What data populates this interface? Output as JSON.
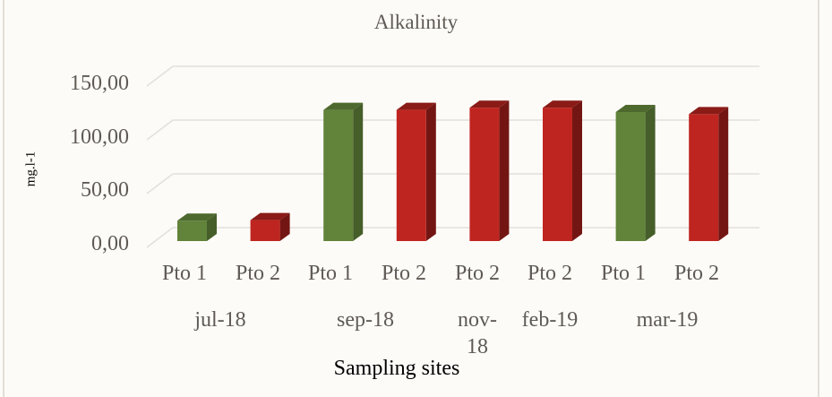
{
  "chart_data": {
    "type": "bar",
    "style": "3d-column",
    "title": "Alkalinity",
    "xlabel": "Sampling sites",
    "ylabel": "mg.l-1",
    "ylim": [
      0,
      150
    ],
    "yticks": [
      "0,00",
      "50,00",
      "100,00",
      "150,00"
    ],
    "grid": true,
    "legend": null,
    "categories": [
      "Pto 1",
      "Pto 2",
      "Pto 1",
      "Pto 2",
      "Pto 2",
      "Pto 2",
      "Pto 1",
      "Pto 2"
    ],
    "groups": [
      {
        "label": "jul-18",
        "span": [
          0,
          1
        ]
      },
      {
        "label": "sep-18",
        "span": [
          2,
          3
        ]
      },
      {
        "label": "nov-18",
        "span": [
          4,
          4
        ]
      },
      {
        "label": "feb-19",
        "span": [
          5,
          5
        ]
      },
      {
        "label": "mar-19",
        "span": [
          6,
          7
        ]
      }
    ],
    "values": [
      19,
      19.5,
      122,
      122,
      124,
      124,
      120,
      118
    ],
    "bar_colors": [
      "#61833a",
      "#bf2520",
      "#61833a",
      "#bf2520",
      "#bf2520",
      "#bf2520",
      "#61833a",
      "#bf2520"
    ]
  },
  "labels": {
    "title": "Alkalinity",
    "ylabel": "mg.l-1",
    "xtitle": "Sampling sites",
    "yticks": [
      "150,00",
      "100,00",
      "50,00",
      "0,00"
    ],
    "xticks": [
      "Pto 1",
      "Pto 2",
      "Pto 1",
      "Pto 2",
      "Pto 2",
      "Pto 2",
      "Pto 1",
      "Pto 2"
    ],
    "groups": [
      "jul-18",
      "sep-18",
      "nov-",
      "18",
      "feb-19",
      "mar-19"
    ]
  }
}
